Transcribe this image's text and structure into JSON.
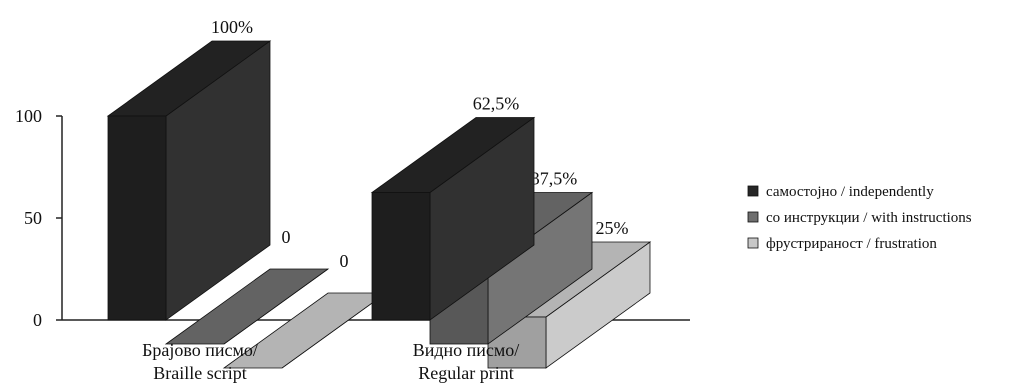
{
  "chart_data": {
    "type": "bar",
    "title": "",
    "xlabel": "",
    "ylabel": "",
    "ylim": [
      0,
      100
    ],
    "yticks": [
      0,
      50,
      100
    ],
    "grid": false,
    "three_d": true,
    "legend_position": "right",
    "categories": [
      [
        "Брајово писмо/",
        "Braille script"
      ],
      [
        "Видно писмо/",
        "Regular print"
      ]
    ],
    "series": [
      {
        "name": "самостојно / independently",
        "color": "#262626",
        "values": [
          100,
          62.5
        ],
        "labels": [
          "100%",
          "62,5%"
        ]
      },
      {
        "name": "со инструкции / with instructions",
        "color": "#6e6e6e",
        "values": [
          0,
          37.5
        ],
        "labels": [
          "0",
          "37,5%"
        ]
      },
      {
        "name": "фрустрираност / frustration",
        "color": "#c8c8c8",
        "values": [
          0,
          25
        ],
        "labels": [
          "0",
          "25%"
        ]
      }
    ]
  }
}
